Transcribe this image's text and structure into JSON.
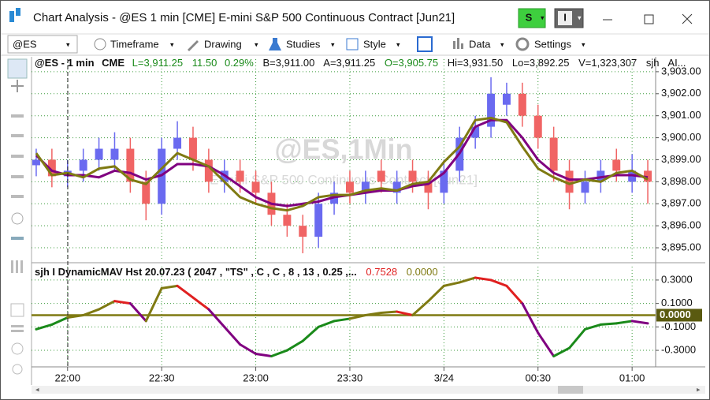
{
  "window": {
    "title": "Chart Analysis - @ES 1 min [CME] E-mini S&P 500 Continuous Contract [Jun21]",
    "buttons": [
      "S",
      "I"
    ]
  },
  "toolbar": {
    "symbol": "@ES",
    "items": [
      "Timeframe",
      "Drawing",
      "Studies",
      "Style",
      "Data",
      "Settings"
    ]
  },
  "quote_line": [
    "@ES - 1 min",
    "CME",
    "L=3,911.25",
    "11.50",
    "0.29%",
    "B=3,911.00",
    "A=3,911.25",
    "O=3,905.75",
    "Hi=3,931.50",
    "Lo=3,892.25",
    "V=1,323,307",
    "sjh",
    "AI..."
  ],
  "chart_data": [
    {
      "type": "candlestick",
      "watermark": "@ES,1Min",
      "watermark_subtitle": "E-mini S&P 500 Continuous Contract [Jun21]",
      "x": [
        -10,
        -5,
        0,
        5,
        10,
        15,
        20,
        25,
        30,
        35,
        40,
        45,
        50,
        55,
        60,
        65,
        70,
        75,
        80,
        85,
        90,
        95,
        100,
        105,
        110,
        115,
        120,
        125,
        130,
        135,
        140,
        145,
        150,
        155,
        160,
        165,
        170,
        175,
        180,
        185
      ],
      "open": [
        3898.75,
        3899,
        3898.25,
        3898.5,
        3899,
        3899,
        3899.5,
        3898,
        3897,
        3899.5,
        3900,
        3899,
        3898,
        3898.5,
        3898,
        3897.5,
        3896.5,
        3896,
        3895.5,
        3897,
        3898,
        3897.5,
        3898.5,
        3897.5,
        3898.5,
        3898,
        3897.5,
        3898.5,
        3900,
        3900.5,
        3901.5,
        3902,
        3901,
        3900,
        3898.5,
        3897.5,
        3898,
        3899,
        3898,
        3898.5
      ],
      "high": [
        3899.5,
        3899.5,
        3899,
        3899.5,
        3900,
        3900.25,
        3900,
        3898.5,
        3900,
        3900.75,
        3900.5,
        3899.5,
        3899,
        3899,
        3898.5,
        3898,
        3897,
        3896.5,
        3897.5,
        3898,
        3898.5,
        3898.5,
        3899,
        3898.5,
        3899,
        3898.5,
        3899,
        3900.5,
        3901,
        3902.75,
        3902.5,
        3902.5,
        3901.5,
        3900.5,
        3899,
        3898.5,
        3899,
        3899.5,
        3899.25,
        3899
      ],
      "low": [
        3898.25,
        3897.75,
        3897.75,
        3898,
        3898.5,
        3898.5,
        3897.5,
        3896.25,
        3896.5,
        3899,
        3898.5,
        3897.5,
        3897.5,
        3897.5,
        3897,
        3896,
        3895.5,
        3894.75,
        3895,
        3896.5,
        3897,
        3897,
        3897.5,
        3897,
        3897.5,
        3896.75,
        3897,
        3898,
        3899.5,
        3900,
        3901,
        3900.5,
        3899.5,
        3898,
        3896.75,
        3897,
        3897.5,
        3898,
        3897.5,
        3897
      ],
      "close": [
        3899,
        3898.25,
        3898.5,
        3899,
        3899.5,
        3899.5,
        3898,
        3897,
        3899.5,
        3900,
        3899,
        3898,
        3898.5,
        3898,
        3897.5,
        3896.5,
        3896,
        3895.5,
        3897,
        3897.5,
        3897.5,
        3898,
        3898,
        3898,
        3898,
        3897.5,
        3898.5,
        3900,
        3900.5,
        3902,
        3902,
        3901,
        3900,
        3898.5,
        3897.5,
        3898,
        3898.5,
        3898.5,
        3898.5,
        3898
      ],
      "up_color": "#6a6af0",
      "down_color": "#f06464",
      "overlays": [
        {
          "color": "#800080",
          "values": [
            3899.2,
            3898.5,
            3898.3,
            3898.3,
            3898.2,
            3898.5,
            3898.4,
            3898.1,
            3898.3,
            3898.8,
            3898.8,
            3898.7,
            3898.3,
            3897.8,
            3897.3,
            3897.0,
            3896.9,
            3897.0,
            3897.1,
            3897.3,
            3897.4,
            3897.5,
            3897.6,
            3897.6,
            3897.8,
            3897.9,
            3898.4,
            3899.3,
            3900.5,
            3900.8,
            3900.8,
            3900.0,
            3899.0,
            3898.4,
            3898.1,
            3898.1,
            3898.2,
            3898.3,
            3898.3,
            3898.2
          ]
        },
        {
          "color": "#7f7a12",
          "values": [
            3899.3,
            3898.3,
            3898.4,
            3898.2,
            3898.6,
            3898.7,
            3898.1,
            3897.9,
            3898.6,
            3899.3,
            3899.0,
            3898.7,
            3898.0,
            3897.3,
            3897.0,
            3896.8,
            3896.7,
            3896.9,
            3897.3,
            3897.4,
            3897.4,
            3897.6,
            3897.7,
            3897.6,
            3897.9,
            3898.0,
            3898.9,
            3899.6,
            3900.8,
            3900.9,
            3900.7,
            3899.6,
            3898.6,
            3898.2,
            3897.9,
            3898.1,
            3898.0,
            3898.4,
            3898.5,
            3898.1
          ]
        }
      ],
      "xlim": [
        -11.5,
        187.5
      ],
      "xticks": [
        {
          "value": 0,
          "label": "22:00"
        },
        {
          "value": 30,
          "label": "22:30"
        },
        {
          "value": 60,
          "label": "23:00"
        },
        {
          "value": 90,
          "label": "23:30"
        },
        {
          "value": 120,
          "label": "3/24"
        },
        {
          "value": 150,
          "label": "00:30"
        },
        {
          "value": 180,
          "label": "01:00"
        }
      ],
      "ylim": [
        3894.5,
        3903.57
      ],
      "yticks": [
        {
          "value": 3895,
          "label": "3,895.00"
        },
        {
          "value": 3896,
          "label": "3,896.00"
        },
        {
          "value": 3897,
          "label": "3,897.00"
        },
        {
          "value": 3898,
          "label": "3,898.00"
        },
        {
          "value": 3899,
          "label": "3,899.00"
        },
        {
          "value": 3900,
          "label": "3,900.00"
        },
        {
          "value": 3901,
          "label": "3,901.00"
        },
        {
          "value": 3902,
          "label": "3,902.00"
        },
        {
          "value": 3903,
          "label": "3,903.00"
        }
      ],
      "grid": true
    },
    {
      "type": "line",
      "title": "sjh  I  DynamicMAV  Hst 20.07.23 ( 2047 , \"TS\" , C , C ,  8 , 13 , 0.25 ,...",
      "readouts": [
        0.7528,
        {
          "value": 0,
          "label": "0.0000"
        }
      ],
      "x": [
        -10,
        -5,
        0,
        5,
        10,
        15,
        20,
        25,
        30,
        35,
        40,
        45,
        50,
        55,
        60,
        65,
        70,
        75,
        80,
        85,
        90,
        95,
        100,
        105,
        110,
        115,
        120,
        125,
        130,
        135,
        140,
        145,
        150,
        155,
        160,
        165,
        170,
        175,
        180,
        185
      ],
      "values": [
        -0.12,
        -0.08,
        -0.02,
        0.0,
        0.05,
        0.12,
        0.1,
        -0.05,
        0.23,
        0.25,
        0.15,
        0.05,
        -0.1,
        -0.25,
        -0.33,
        -0.35,
        -0.3,
        -0.22,
        -0.1,
        -0.05,
        -0.03,
        0.0,
        0.02,
        0.03,
        0.0,
        0.12,
        0.25,
        0.28,
        0.32,
        0.3,
        0.25,
        0.1,
        -0.15,
        -0.35,
        -0.28,
        -0.12,
        -0.08,
        -0.07,
        -0.05,
        -0.07
      ],
      "colors": {
        "rise_above": "#7f7a12",
        "fall_above": "#e02020",
        "fall_below": "#800080",
        "rise_below": "#1a8a1a"
      },
      "reference_line": {
        "value": 0,
        "label": "0.0000",
        "color": "#7f7a12"
      },
      "xlim": [
        -11.5,
        187.5
      ],
      "ylim": [
        -0.441,
        0.414
      ],
      "yticks": [
        {
          "value": 0.3,
          "label": "0.3000"
        },
        {
          "value": 0.1,
          "label": "0.1000"
        },
        {
          "value": -0.1,
          "label": "-0.1000"
        },
        {
          "value": -0.3,
          "label": "-0.3000"
        }
      ],
      "grid": true
    }
  ]
}
